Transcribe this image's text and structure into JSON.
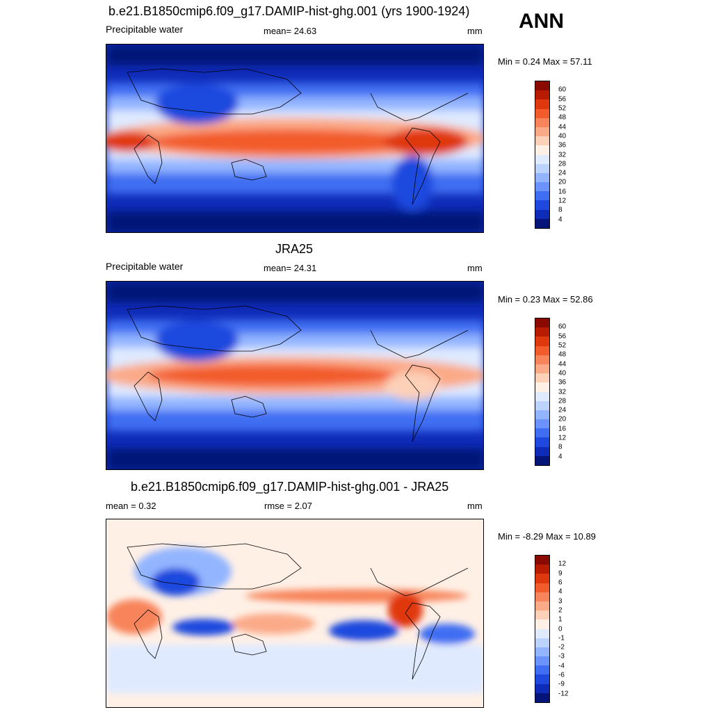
{
  "season": "ANN",
  "panels": [
    {
      "title": "b.e21.B1850cmip6.f09_g17.DAMIP-hist-ghg.001 (yrs 1900-1924)",
      "left": "Precipitable water",
      "center": "mean=  24.63",
      "right": "mm",
      "minmax": "Min =   0.24 Max =  57.11",
      "levels": [
        "60",
        "56",
        "52",
        "48",
        "44",
        "40",
        "36",
        "32",
        "28",
        "24",
        "20",
        "16",
        "12",
        "8",
        "4"
      ]
    },
    {
      "title": "JRA25",
      "left": "Precipitable water",
      "center": "mean=  24.31",
      "right": "mm",
      "minmax": "Min =   0.23 Max =  52.86",
      "levels": [
        "60",
        "56",
        "52",
        "48",
        "44",
        "40",
        "36",
        "32",
        "28",
        "24",
        "20",
        "16",
        "12",
        "8",
        "4"
      ]
    },
    {
      "title": "b.e21.B1850cmip6.f09_g17.DAMIP-hist-ghg.001 - JRA25",
      "left": "mean =   0.32",
      "center": "rmse =   2.07",
      "right": "mm",
      "minmax": "Min =  -8.29 Max =  10.89",
      "levels": [
        "12",
        "9",
        "6",
        "4",
        "3",
        "2",
        "1",
        "0",
        "-1",
        "-2",
        "-3",
        "-4",
        "-6",
        "-9",
        "-12"
      ]
    }
  ],
  "colors": {
    "abs_scale": [
      "#8b0a00",
      "#b81c00",
      "#e0380e",
      "#f25c2c",
      "#f7845a",
      "#fbaa88",
      "#fdd0b8",
      "#fff0e6",
      "#dfeaff",
      "#bcd3ff",
      "#93b5ff",
      "#6a93fb",
      "#3f6ef2",
      "#1f49de",
      "#0f2cb8",
      "#051478"
    ],
    "diff_scale": [
      "#8b0a00",
      "#b81c00",
      "#e0380e",
      "#f25c2c",
      "#f7845a",
      "#fbaa88",
      "#fdd0b8",
      "#fff0e6",
      "#dfeaff",
      "#bcd3ff",
      "#93b5ff",
      "#6a93fb",
      "#3f6ef2",
      "#1f49de",
      "#0f2cb8",
      "#051478"
    ]
  }
}
